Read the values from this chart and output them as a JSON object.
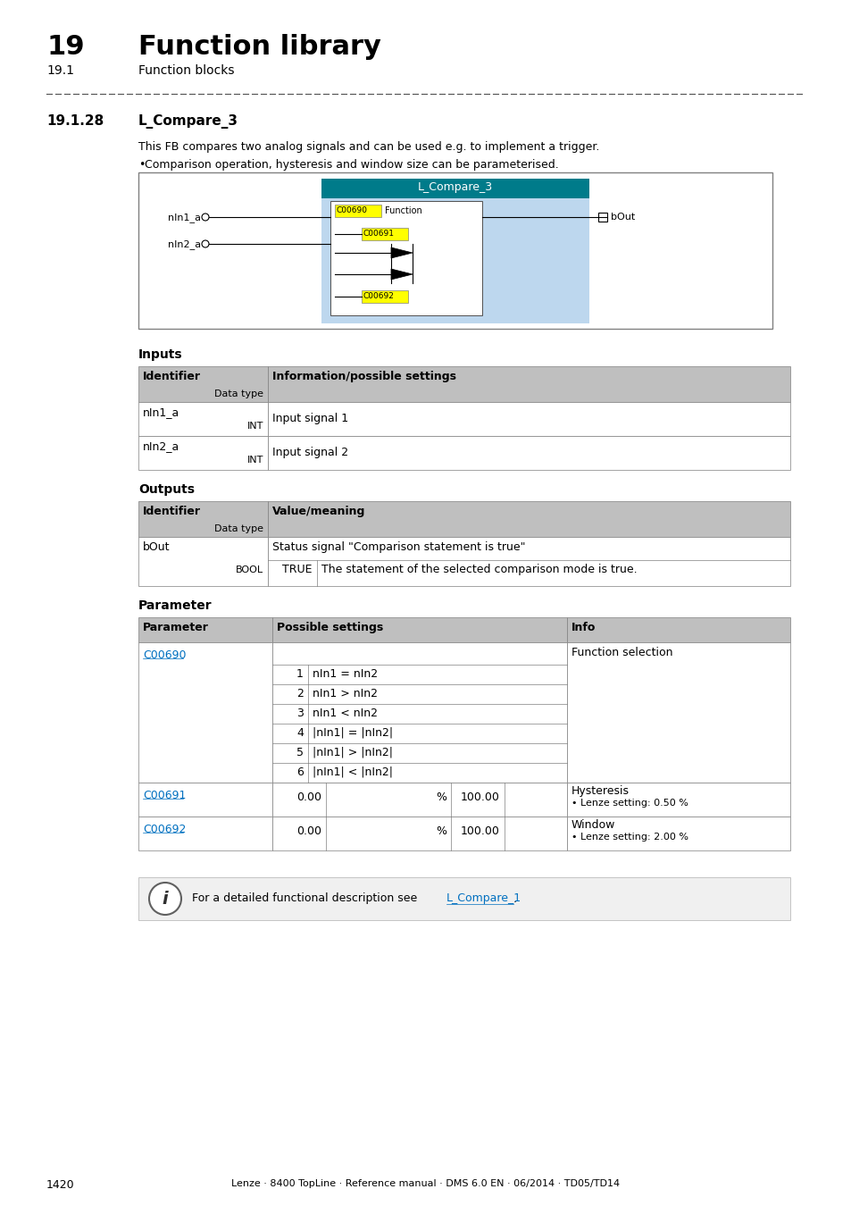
{
  "page_num": "1420",
  "chapter_num": "19",
  "chapter_title": "Function library",
  "section_num": "19.1",
  "section_title": "Function blocks",
  "subsection": "19.1.28",
  "subsection_title": "L_Compare_3",
  "description1": "This FB compares two analog signals and can be used e.g. to implement a trigger.",
  "bullet1": "Comparison operation, hysteresis and window size can be parameterised.",
  "fb_title": "L_Compare_3",
  "fb_label_c00690": "C00690",
  "fb_label_function": "Function",
  "fb_label_c00691": "C00691",
  "fb_label_c00692": "C00692",
  "fb_input1": "nIn1_a",
  "fb_input2": "nIn2_a",
  "fb_output": "bOut",
  "inputs_header": "Inputs",
  "inputs_col1": "Identifier",
  "inputs_col1b": "Data type",
  "inputs_col2": "Information/possible settings",
  "inputs_rows": [
    [
      "nIn1_a",
      "INT",
      "Input signal 1"
    ],
    [
      "nIn2_a",
      "INT",
      "Input signal 2"
    ]
  ],
  "outputs_header": "Outputs",
  "outputs_col1": "Identifier",
  "outputs_col1b": "Data type",
  "outputs_col2": "Value/meaning",
  "outputs_rows": [
    [
      "bOut",
      "BOOL",
      "Status signal \"Comparison statement is true\"",
      "TRUE",
      "The statement of the selected comparison mode is true."
    ]
  ],
  "param_header": "Parameter",
  "param_col1": "Parameter",
  "param_col2": "Possible settings",
  "param_col3": "Info",
  "param_rows_c690_subs": [
    [
      "1",
      "nIn1 = nIn2"
    ],
    [
      "2",
      "nIn1 > nIn2"
    ],
    [
      "3",
      "nIn1 < nIn2"
    ],
    [
      "4",
      "|nIn1| = |nIn2|"
    ],
    [
      "5",
      "|nIn1| > |nIn2|"
    ],
    [
      "6",
      "|nIn1| < |nIn2|"
    ]
  ],
  "footer_link": "L_Compare_1",
  "footer_text": "For a detailed functional description see ",
  "footer_page": "Lenze · 8400 TopLine · Reference manual · DMS 6.0 EN · 06/2014 · TD05/TD14",
  "teal_color": "#007B8A",
  "blue_bg": "#BDD7EE",
  "yellow_color": "#FFFF00",
  "link_color": "#0070C0",
  "header_gray": "#BFBFBF",
  "white": "#FFFFFF",
  "border_color": "#808080"
}
